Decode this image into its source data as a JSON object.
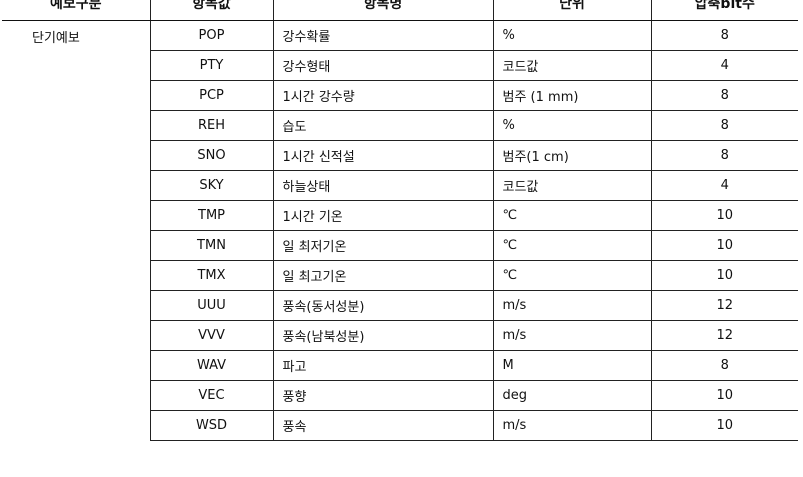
{
  "headers": [
    "예보구분",
    "항목값",
    "항목명",
    "단위",
    "압축bit수"
  ],
  "category": "단기예보",
  "rows": [
    {
      "code": "POP",
      "name": "강수확률",
      "unit": "%",
      "bits": "8"
    },
    {
      "code": "PTY",
      "name": "강수형태",
      "unit": "코드값",
      "bits": "4"
    },
    {
      "code": "PCP",
      "name": "1시간 강수량",
      "unit": "범주 (1 mm)",
      "bits": "8"
    },
    {
      "code": "REH",
      "name": "습도",
      "unit": "%",
      "bits": "8"
    },
    {
      "code": "SNO",
      "name": "1시간 신적설",
      "unit": "범주(1 cm)",
      "bits": "8"
    },
    {
      "code": "SKY",
      "name": "하늘상태",
      "unit": "코드값",
      "bits": "4"
    },
    {
      "code": "TMP",
      "name": "1시간 기온",
      "unit": "℃",
      "bits": "10"
    },
    {
      "code": "TMN",
      "name": "일 최저기온",
      "unit": "℃",
      "bits": "10"
    },
    {
      "code": "TMX",
      "name": "일 최고기온",
      "unit": "℃",
      "bits": "10"
    },
    {
      "code": "UUU",
      "name": "풍속(동서성분)",
      "unit": "m/s",
      "bits": "12"
    },
    {
      "code": "VVV",
      "name": "풍속(남북성분)",
      "unit": "m/s",
      "bits": "12"
    },
    {
      "code": "WAV",
      "name": "파고",
      "unit": "M",
      "bits": "8"
    },
    {
      "code": "VEC",
      "name": "풍향",
      "unit": "deg",
      "bits": "10"
    },
    {
      "code": "WSD",
      "name": "풍속",
      "unit": "m/s",
      "bits": "10"
    }
  ]
}
